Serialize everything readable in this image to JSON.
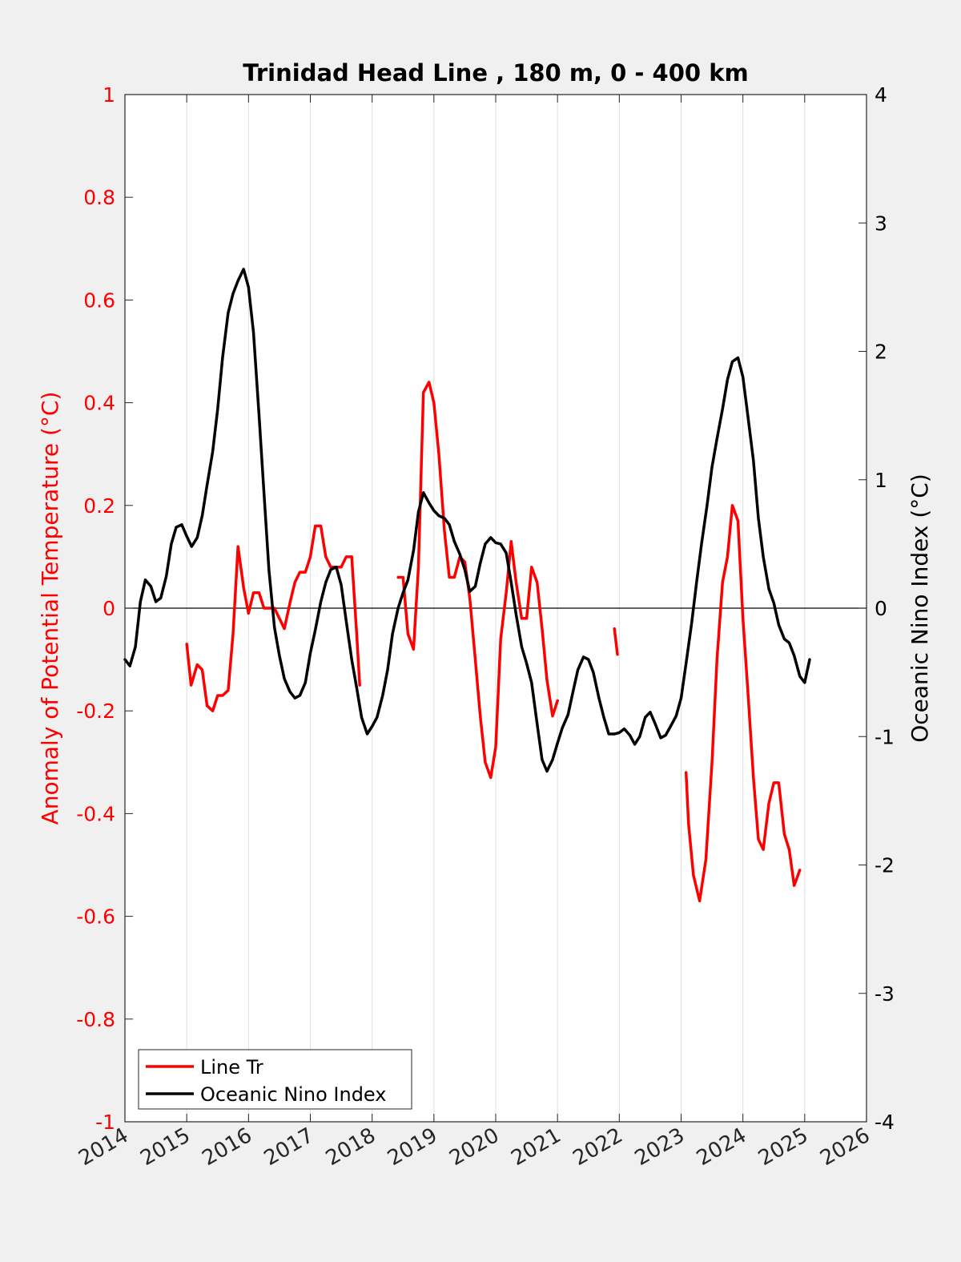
{
  "chart_data": {
    "type": "line",
    "title": "Trinidad Head Line , 180 m, 0 - 400 km",
    "xlim": [
      2014,
      2026
    ],
    "x_ticks": [
      "2014",
      "2015",
      "2016",
      "2017",
      "2018",
      "2019",
      "2020",
      "2021",
      "2022",
      "2023",
      "2024",
      "2025",
      "2026"
    ],
    "grid": "vertical lines at each year",
    "legend_position": "bottom-left",
    "y_left": {
      "label": "Anomaly of Potential Temperature (°C)",
      "lim": [
        -1,
        1
      ],
      "ticks": [
        "1",
        "0.8",
        "0.6",
        "0.4",
        "0.2",
        "0",
        "-0.2",
        "-0.4",
        "-0.6",
        "-0.8",
        "-1"
      ],
      "color": "#ff0000"
    },
    "y_right": {
      "label": "Oceanic Nino Index (°C)",
      "lim": [
        -4,
        4
      ],
      "ticks": [
        "4",
        "3",
        "2",
        "1",
        "0",
        "-1",
        "-2",
        "-3",
        "-4"
      ],
      "color": "#000000"
    },
    "series": [
      {
        "name": "Line Tr",
        "axis": "left",
        "color": "#ff0000",
        "segments": [
          [
            [
              2015.0,
              -0.07
            ],
            [
              2015.07,
              -0.15
            ],
            [
              2015.17,
              -0.11
            ],
            [
              2015.25,
              -0.12
            ],
            [
              2015.33,
              -0.19
            ],
            [
              2015.42,
              -0.2
            ],
            [
              2015.5,
              -0.17
            ],
            [
              2015.58,
              -0.17
            ],
            [
              2015.67,
              -0.16
            ],
            [
              2015.75,
              -0.05
            ],
            [
              2015.83,
              0.12
            ],
            [
              2015.92,
              0.04
            ],
            [
              2016.0,
              -0.01
            ],
            [
              2016.08,
              0.03
            ],
            [
              2016.17,
              0.03
            ],
            [
              2016.25,
              0.0
            ],
            [
              2016.33,
              0.0
            ],
            [
              2016.42,
              0.0
            ],
            [
              2016.5,
              -0.02
            ],
            [
              2016.58,
              -0.04
            ],
            [
              2016.67,
              0.01
            ],
            [
              2016.75,
              0.05
            ],
            [
              2016.83,
              0.07
            ],
            [
              2016.92,
              0.07
            ],
            [
              2017.0,
              0.1
            ],
            [
              2017.08,
              0.16
            ],
            [
              2017.17,
              0.16
            ],
            [
              2017.25,
              0.1
            ],
            [
              2017.33,
              0.08
            ],
            [
              2017.42,
              0.08
            ],
            [
              2017.5,
              0.08
            ],
            [
              2017.58,
              0.1
            ],
            [
              2017.67,
              0.1
            ],
            [
              2017.75,
              -0.05
            ],
            [
              2017.8,
              -0.15
            ]
          ],
          [
            [
              2018.42,
              0.06
            ],
            [
              2018.5,
              0.06
            ],
            [
              2018.58,
              -0.05
            ],
            [
              2018.67,
              -0.08
            ],
            [
              2018.75,
              0.08
            ],
            [
              2018.83,
              0.42
            ],
            [
              2018.92,
              0.44
            ],
            [
              2019.0,
              0.4
            ],
            [
              2019.08,
              0.3
            ],
            [
              2019.17,
              0.15
            ],
            [
              2019.25,
              0.06
            ],
            [
              2019.33,
              0.06
            ],
            [
              2019.42,
              0.1
            ],
            [
              2019.5,
              0.09
            ],
            [
              2019.58,
              0.02
            ],
            [
              2019.67,
              -0.1
            ],
            [
              2019.75,
              -0.21
            ],
            [
              2019.83,
              -0.3
            ],
            [
              2019.92,
              -0.33
            ],
            [
              2020.0,
              -0.27
            ],
            [
              2020.08,
              -0.06
            ],
            [
              2020.17,
              0.03
            ],
            [
              2020.25,
              0.13
            ],
            [
              2020.33,
              0.05
            ],
            [
              2020.42,
              -0.02
            ],
            [
              2020.5,
              -0.02
            ],
            [
              2020.58,
              0.08
            ],
            [
              2020.67,
              0.05
            ],
            [
              2020.75,
              -0.04
            ],
            [
              2020.83,
              -0.14
            ],
            [
              2020.92,
              -0.21
            ],
            [
              2021.0,
              -0.18
            ]
          ],
          [
            [
              2021.92,
              -0.04
            ],
            [
              2021.97,
              -0.09
            ]
          ],
          [
            [
              2023.08,
              -0.32
            ],
            [
              2023.12,
              -0.42
            ],
            [
              2023.2,
              -0.52
            ],
            [
              2023.3,
              -0.57
            ],
            [
              2023.4,
              -0.49
            ],
            [
              2023.5,
              -0.3
            ],
            [
              2023.58,
              -0.1
            ],
            [
              2023.67,
              0.05
            ],
            [
              2023.75,
              0.1
            ],
            [
              2023.83,
              0.2
            ],
            [
              2023.92,
              0.17
            ],
            [
              2024.0,
              -0.02
            ],
            [
              2024.08,
              -0.16
            ],
            [
              2024.17,
              -0.33
            ],
            [
              2024.25,
              -0.45
            ],
            [
              2024.33,
              -0.47
            ],
            [
              2024.42,
              -0.38
            ],
            [
              2024.5,
              -0.34
            ],
            [
              2024.58,
              -0.34
            ],
            [
              2024.67,
              -0.44
            ],
            [
              2024.75,
              -0.47
            ],
            [
              2024.83,
              -0.54
            ],
            [
              2024.92,
              -0.51
            ]
          ]
        ]
      },
      {
        "name": "Oceanic Nino Index",
        "axis": "right",
        "color": "#000000",
        "segments": [
          [
            [
              2014.0,
              -0.4
            ],
            [
              2014.08,
              -0.45
            ],
            [
              2014.17,
              -0.3
            ],
            [
              2014.25,
              0.05
            ],
            [
              2014.33,
              0.22
            ],
            [
              2014.42,
              0.17
            ],
            [
              2014.5,
              0.05
            ],
            [
              2014.58,
              0.08
            ],
            [
              2014.67,
              0.25
            ],
            [
              2014.75,
              0.5
            ],
            [
              2014.83,
              0.63
            ],
            [
              2014.92,
              0.65
            ],
            [
              2015.0,
              0.56
            ],
            [
              2015.08,
              0.48
            ],
            [
              2015.17,
              0.55
            ],
            [
              2015.25,
              0.72
            ],
            [
              2015.33,
              0.96
            ],
            [
              2015.42,
              1.22
            ],
            [
              2015.5,
              1.55
            ],
            [
              2015.58,
              1.95
            ],
            [
              2015.67,
              2.3
            ],
            [
              2015.75,
              2.45
            ],
            [
              2015.83,
              2.55
            ],
            [
              2015.92,
              2.64
            ],
            [
              2016.0,
              2.5
            ],
            [
              2016.08,
              2.15
            ],
            [
              2016.17,
              1.5
            ],
            [
              2016.25,
              0.9
            ],
            [
              2016.33,
              0.3
            ],
            [
              2016.42,
              -0.15
            ],
            [
              2016.5,
              -0.37
            ],
            [
              2016.58,
              -0.55
            ],
            [
              2016.67,
              -0.65
            ],
            [
              2016.75,
              -0.7
            ],
            [
              2016.83,
              -0.68
            ],
            [
              2016.92,
              -0.58
            ],
            [
              2017.0,
              -0.35
            ],
            [
              2017.08,
              -0.17
            ],
            [
              2017.17,
              0.05
            ],
            [
              2017.25,
              0.2
            ],
            [
              2017.33,
              0.3
            ],
            [
              2017.42,
              0.32
            ],
            [
              2017.5,
              0.18
            ],
            [
              2017.58,
              -0.1
            ],
            [
              2017.67,
              -0.4
            ],
            [
              2017.75,
              -0.62
            ],
            [
              2017.83,
              -0.85
            ],
            [
              2017.92,
              -0.98
            ],
            [
              2018.0,
              -0.92
            ],
            [
              2018.08,
              -0.85
            ],
            [
              2018.17,
              -0.68
            ],
            [
              2018.25,
              -0.48
            ],
            [
              2018.33,
              -0.2
            ],
            [
              2018.42,
              0.0
            ],
            [
              2018.5,
              0.12
            ],
            [
              2018.58,
              0.22
            ],
            [
              2018.67,
              0.45
            ],
            [
              2018.75,
              0.75
            ],
            [
              2018.83,
              0.9
            ],
            [
              2018.92,
              0.82
            ],
            [
              2019.0,
              0.76
            ],
            [
              2019.08,
              0.72
            ],
            [
              2019.17,
              0.7
            ],
            [
              2019.25,
              0.65
            ],
            [
              2019.33,
              0.52
            ],
            [
              2019.42,
              0.42
            ],
            [
              2019.5,
              0.3
            ],
            [
              2019.58,
              0.13
            ],
            [
              2019.67,
              0.17
            ],
            [
              2019.75,
              0.35
            ],
            [
              2019.83,
              0.5
            ],
            [
              2019.92,
              0.55
            ],
            [
              2020.0,
              0.51
            ],
            [
              2020.08,
              0.5
            ],
            [
              2020.17,
              0.43
            ],
            [
              2020.25,
              0.2
            ],
            [
              2020.33,
              -0.05
            ],
            [
              2020.42,
              -0.3
            ],
            [
              2020.5,
              -0.43
            ],
            [
              2020.58,
              -0.58
            ],
            [
              2020.67,
              -0.9
            ],
            [
              2020.75,
              -1.18
            ],
            [
              2020.83,
              -1.27
            ],
            [
              2020.92,
              -1.18
            ],
            [
              2021.0,
              -1.05
            ],
            [
              2021.08,
              -0.93
            ],
            [
              2021.17,
              -0.83
            ],
            [
              2021.25,
              -0.65
            ],
            [
              2021.33,
              -0.48
            ],
            [
              2021.42,
              -0.38
            ],
            [
              2021.5,
              -0.4
            ],
            [
              2021.58,
              -0.5
            ],
            [
              2021.67,
              -0.7
            ],
            [
              2021.75,
              -0.85
            ],
            [
              2021.83,
              -0.98
            ],
            [
              2021.92,
              -0.98
            ],
            [
              2022.0,
              -0.97
            ],
            [
              2022.08,
              -0.94
            ],
            [
              2022.17,
              -0.99
            ],
            [
              2022.25,
              -1.06
            ],
            [
              2022.33,
              -1.0
            ],
            [
              2022.42,
              -0.85
            ],
            [
              2022.5,
              -0.81
            ],
            [
              2022.58,
              -0.9
            ],
            [
              2022.67,
              -1.01
            ],
            [
              2022.75,
              -0.99
            ],
            [
              2022.83,
              -0.92
            ],
            [
              2022.92,
              -0.84
            ],
            [
              2023.0,
              -0.7
            ],
            [
              2023.08,
              -0.43
            ],
            [
              2023.17,
              -0.12
            ],
            [
              2023.25,
              0.2
            ],
            [
              2023.33,
              0.5
            ],
            [
              2023.42,
              0.8
            ],
            [
              2023.5,
              1.1
            ],
            [
              2023.58,
              1.32
            ],
            [
              2023.67,
              1.55
            ],
            [
              2023.75,
              1.78
            ],
            [
              2023.83,
              1.92
            ],
            [
              2023.92,
              1.95
            ],
            [
              2024.0,
              1.8
            ],
            [
              2024.08,
              1.5
            ],
            [
              2024.17,
              1.15
            ],
            [
              2024.25,
              0.7
            ],
            [
              2024.33,
              0.4
            ],
            [
              2024.42,
              0.15
            ],
            [
              2024.5,
              0.04
            ],
            [
              2024.58,
              -0.13
            ],
            [
              2024.67,
              -0.24
            ],
            [
              2024.75,
              -0.27
            ],
            [
              2024.83,
              -0.37
            ],
            [
              2024.92,
              -0.53
            ],
            [
              2025.0,
              -0.58
            ],
            [
              2025.08,
              -0.4
            ]
          ]
        ]
      }
    ]
  }
}
